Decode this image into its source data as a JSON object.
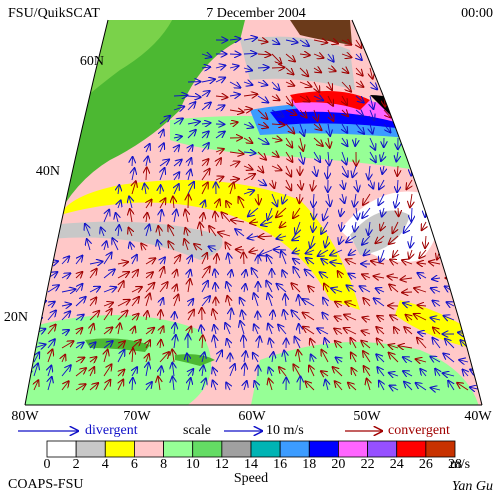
{
  "header": {
    "product": "FSU/QuikSCAT",
    "date": "7 December 2004",
    "time": "00:00"
  },
  "map": {
    "lat_labels": [
      "60N",
      "40N",
      "20N"
    ],
    "lon_labels": [
      "80W",
      "70W",
      "60W",
      "50W",
      "40W"
    ]
  },
  "legend": {
    "divergent": "divergent",
    "scale": "scale",
    "scale_value": "10 m/s",
    "convergent": "convergent"
  },
  "colorbar": {
    "ticks": [
      0,
      2,
      4,
      6,
      8,
      10,
      12,
      14,
      16,
      18,
      20,
      22,
      24,
      26,
      28
    ],
    "unit": "m/s",
    "title": "Speed",
    "colors": [
      "#ffffff",
      "#c8c8c8",
      "#ffff00",
      "#ffc8c8",
      "#96ff96",
      "#64dc64",
      "#a0a0a0",
      "#00b4b4",
      "#3c9cff",
      "#0000ff",
      "#ff64ff",
      "#9650ff",
      "#ff0000",
      "#c83200"
    ]
  },
  "footer": {
    "left": "COAPS-FSU",
    "right": "Yan Gu"
  }
}
